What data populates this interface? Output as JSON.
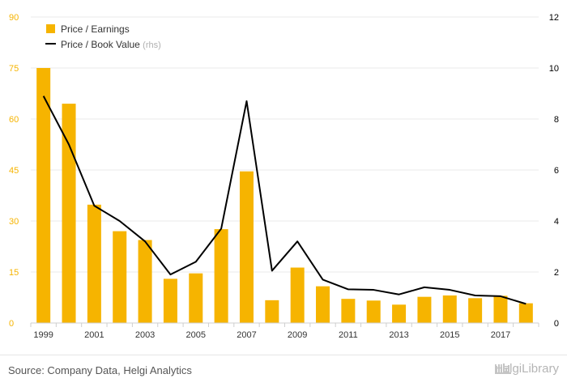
{
  "chart_data": {
    "type": "bar",
    "categories": [
      "1999",
      "2000",
      "2001",
      "2002",
      "2003",
      "2004",
      "2005",
      "2006",
      "2007",
      "2008",
      "2009",
      "2010",
      "2011",
      "2012",
      "2013",
      "2014",
      "2015",
      "2016",
      "2017",
      "2018"
    ],
    "x_tick_labels": [
      "1999",
      "2001",
      "2003",
      "2005",
      "2007",
      "2009",
      "2011",
      "2013",
      "2015",
      "2017"
    ],
    "series": [
      {
        "name": "Price / Earnings",
        "type": "bar",
        "axis": "left",
        "color": "#f6b400",
        "values": [
          75.0,
          64.5,
          34.8,
          27.0,
          24.4,
          13.0,
          14.6,
          27.6,
          44.6,
          6.7,
          16.3,
          10.8,
          7.1,
          6.6,
          5.4,
          7.7,
          8.1,
          7.3,
          8.0,
          5.8
        ]
      },
      {
        "name": "Price / Book Value",
        "name_suffix": "(rhs)",
        "type": "line",
        "axis": "right",
        "color": "#000000",
        "values": [
          8.9,
          7.0,
          4.6,
          4.0,
          3.2,
          1.9,
          2.4,
          3.7,
          8.7,
          2.05,
          3.2,
          1.7,
          1.32,
          1.3,
          1.12,
          1.4,
          1.3,
          1.08,
          1.05,
          0.75
        ]
      }
    ],
    "y_left": {
      "min": 0,
      "max": 90,
      "ticks": [
        "0",
        "15",
        "30",
        "45",
        "60",
        "75",
        "90"
      ],
      "color": "#f6b400"
    },
    "y_right": {
      "min": 0,
      "max": 12,
      "ticks": [
        "0",
        "2",
        "4",
        "6",
        "8",
        "10",
        "12"
      ],
      "color": "#000000"
    },
    "grid": true,
    "legend_position": "top-left"
  },
  "footer": {
    "source": "Source: Company Data, Helgi Analytics",
    "brand": "HelgiLibrary",
    "brand_icon": "library-logo-icon"
  }
}
